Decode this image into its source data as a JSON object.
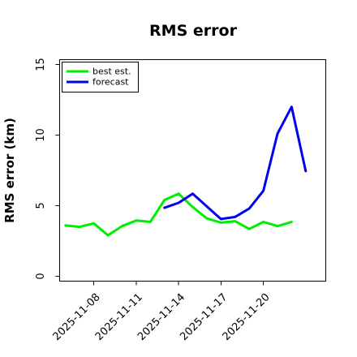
{
  "chart_data": {
    "type": "line",
    "title": "RMS error",
    "xlabel": "",
    "ylabel": "RMS error (km)",
    "ylim": [
      0,
      15
    ],
    "yticks": [
      0,
      5,
      10,
      15
    ],
    "xlim": [
      "2025-11-05T14:00",
      "2025-11-24T10:00"
    ],
    "xticks": [
      "2025-11-08",
      "2025-11-11",
      "2025-11-14",
      "2025-11-17",
      "2025-11-20"
    ],
    "grid": false,
    "legend_position": "top-left",
    "series": [
      {
        "name": "best est.",
        "color": "#00ee00",
        "x": [
          "2025-11-06",
          "2025-11-07",
          "2025-11-08",
          "2025-11-09",
          "2025-11-10",
          "2025-11-11",
          "2025-11-12",
          "2025-11-13",
          "2025-11-14",
          "2025-11-15",
          "2025-11-16",
          "2025-11-17",
          "2025-11-18",
          "2025-11-19",
          "2025-11-20",
          "2025-11-21",
          "2025-11-22",
          "2025-11-23"
        ],
        "values": [
          3.6,
          3.5,
          3.75,
          2.9,
          3.55,
          3.95,
          3.85,
          5.4,
          5.85,
          4.9,
          4.1,
          3.8,
          3.9,
          3.35,
          3.85,
          3.55,
          3.85,
          null
        ]
      },
      {
        "name": "forecast",
        "color": "#0000ee",
        "x": [
          "2025-11-13",
          "2025-11-14",
          "2025-11-15",
          "2025-11-16",
          "2025-11-17",
          "2025-11-18",
          "2025-11-19",
          "2025-11-20",
          "2025-11-21",
          "2025-11-22",
          "2025-11-23"
        ],
        "values": [
          4.85,
          5.2,
          5.85,
          4.95,
          4.05,
          4.2,
          4.8,
          6.05,
          10.1,
          12.0,
          7.45
        ]
      }
    ]
  }
}
